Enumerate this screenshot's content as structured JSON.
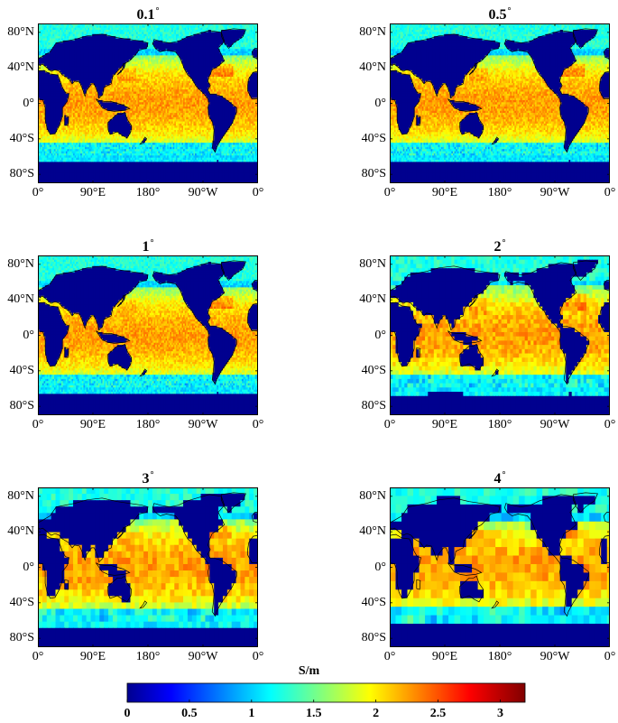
{
  "panels": [
    {
      "title": "0.1",
      "degree_symbol": "°",
      "resolution_deg": 0.1
    },
    {
      "title": "0.5",
      "degree_symbol": "°",
      "resolution_deg": 0.5
    },
    {
      "title": "1",
      "degree_symbol": "°",
      "resolution_deg": 1
    },
    {
      "title": "2",
      "degree_symbol": "°",
      "resolution_deg": 2
    },
    {
      "title": "3",
      "degree_symbol": "°",
      "resolution_deg": 3
    },
    {
      "title": "4",
      "degree_symbol": "°",
      "resolution_deg": 4
    }
  ],
  "y_ticks": [
    "80°N",
    "40°N",
    "0°",
    "40°S",
    "80°S"
  ],
  "x_ticks": [
    "0°",
    "90°E",
    "180°",
    "90°W",
    "0°"
  ],
  "colorbar": {
    "label": "S/m",
    "ticks": [
      "0",
      "0.5",
      "1",
      "1.5",
      "2",
      "2.5",
      "3"
    ],
    "range": [
      0,
      3.2
    ],
    "colormap": "jet"
  },
  "colors": {
    "land": "#00008f",
    "coastline": "#000000",
    "ocean_low": "#1ea0ff",
    "ocean_mid": "#4fe0d8",
    "ocean_high": "#f0f040",
    "ocean_peak": "#ffb020"
  }
}
